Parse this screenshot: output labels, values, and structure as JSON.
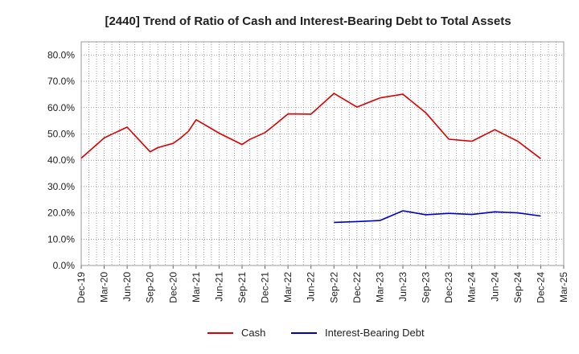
{
  "chart_data": {
    "type": "line",
    "title": "[2440]  Trend of Ratio of Cash and Interest-Bearing Debt to Total Assets",
    "xlabel": "",
    "ylabel": "",
    "y_ticks": [
      "0.0%",
      "10.0%",
      "20.0%",
      "30.0%",
      "40.0%",
      "50.0%",
      "60.0%",
      "70.0%",
      "80.0%"
    ],
    "ylim": [
      0,
      85
    ],
    "x_ticks": [
      "Dec-19",
      "Mar-20",
      "Jun-20",
      "Sep-20",
      "Dec-20",
      "Mar-21",
      "Jun-21",
      "Sep-21",
      "Dec-21",
      "Mar-22",
      "Jun-22",
      "Sep-22",
      "Dec-22",
      "Mar-23",
      "Jun-23",
      "Sep-23",
      "Dec-23",
      "Mar-24",
      "Jun-24",
      "Sep-24",
      "Dec-24",
      "Mar-25"
    ],
    "grid": true,
    "legend_position": "bottom",
    "series": [
      {
        "name": "Cash",
        "color": "#dd0000",
        "points": [
          [
            "Dec-19",
            40.8
          ],
          [
            "Mar-20",
            48.5
          ],
          [
            "Apr-20",
            49.9
          ],
          [
            "Jun-20",
            52.6
          ],
          [
            "Sep-20",
            43.2
          ],
          [
            "Oct-20",
            44.8
          ],
          [
            "Dec-20",
            46.4
          ],
          [
            "Jan-21",
            48.5
          ],
          [
            "Feb-21",
            51.0
          ],
          [
            "Mar-21",
            55.4
          ],
          [
            "Jun-21",
            50.3
          ],
          [
            "Sep-21",
            46.0
          ],
          [
            "Oct-21",
            47.9
          ],
          [
            "Dec-21",
            50.5
          ],
          [
            "Jan-22",
            52.8
          ],
          [
            "Mar-22",
            57.6
          ],
          [
            "Jun-22",
            57.5
          ],
          [
            "Sep-22",
            65.4
          ],
          [
            "Dec-22",
            60.2
          ],
          [
            "Mar-23",
            63.7
          ],
          [
            "Jun-23",
            65.1
          ],
          [
            "Sep-23",
            58.0
          ],
          [
            "Dec-23",
            48.0
          ],
          [
            "Mar-24",
            47.2
          ],
          [
            "Jun-24",
            51.6
          ],
          [
            "Sep-24",
            47.2
          ],
          [
            "Dec-24",
            40.6
          ]
        ]
      },
      {
        "name": "Interest-Bearing Debt",
        "color": "#0000cc",
        "points": [
          [
            "Sep-22",
            16.4
          ],
          [
            "Dec-22",
            16.7
          ],
          [
            "Mar-23",
            17.1
          ],
          [
            "Jun-23",
            20.8
          ],
          [
            "Sep-23",
            19.3
          ],
          [
            "Dec-23",
            19.8
          ],
          [
            "Mar-24",
            19.4
          ],
          [
            "Jun-24",
            20.4
          ],
          [
            "Sep-24",
            20.0
          ],
          [
            "Dec-24",
            18.8
          ]
        ]
      }
    ]
  }
}
